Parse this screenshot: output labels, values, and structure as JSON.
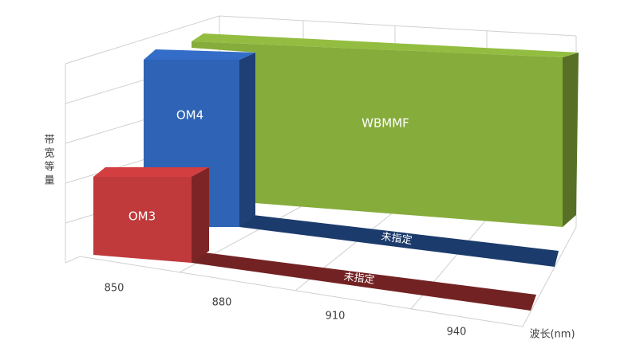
{
  "chart_data": {
    "type": "bar3d",
    "ylabel": "带宽等量",
    "xlabel": "波长(nm)",
    "xticks": [
      850,
      880,
      910,
      940
    ],
    "series": [
      {
        "name": "OM3",
        "color": "#c0393b",
        "tail_label": "未指定"
      },
      {
        "name": "OM4",
        "color": "#2e63b5",
        "tail_label": "未指定"
      },
      {
        "name": "WBMMF",
        "color": "#86ac3b"
      }
    ]
  }
}
